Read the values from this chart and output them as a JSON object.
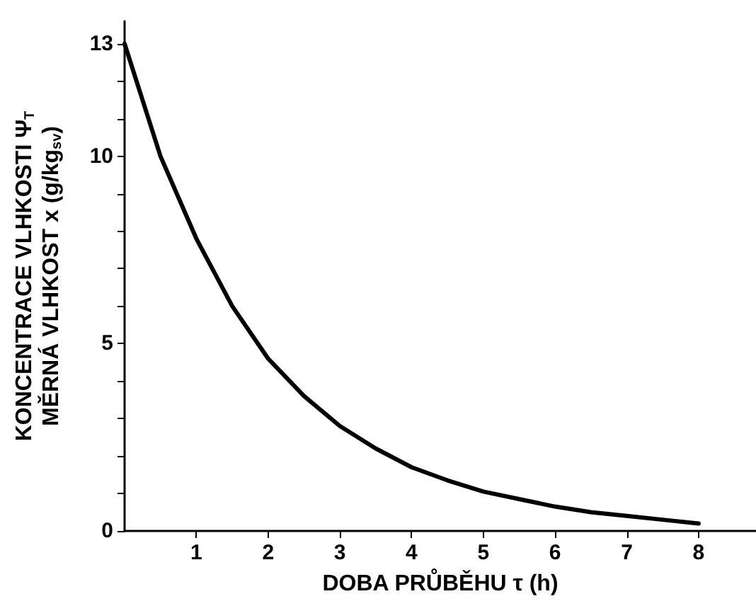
{
  "chart_data": {
    "type": "line",
    "xlabel": "DOBA PRŮBĚHU τ (h)",
    "ylabel": "KONCENTRACE VLHKOSTI Ψ$_{T}$\nMĚRNÁ VLHKOST x (g/kg$_{sv}$)",
    "x": [
      0,
      0.5,
      1,
      1.5,
      2,
      2.5,
      3,
      3.5,
      4,
      4.5,
      5,
      5.5,
      6,
      6.5,
      7,
      7.5,
      8
    ],
    "series": [
      {
        "color": "#000000",
        "values": [
          13,
          10.0,
          7.8,
          6.0,
          4.6,
          3.6,
          2.8,
          2.2,
          1.7,
          1.35,
          1.05,
          0.85,
          0.65,
          0.5,
          0.4,
          0.3,
          0.2
        ]
      }
    ],
    "xlim": [
      0,
      8.8
    ],
    "xticks": [
      1,
      2,
      3,
      4,
      5,
      6,
      7,
      8
    ],
    "ylim": [
      0,
      13.6
    ],
    "yticks": [
      0,
      {
        "value": 1,
        "label": null
      },
      {
        "value": 2,
        "label": null
      },
      {
        "value": 3,
        "label": null
      },
      {
        "value": 4,
        "label": null
      },
      5,
      {
        "value": 6,
        "label": null
      },
      {
        "value": 7,
        "label": null
      },
      {
        "value": 8,
        "label": null
      },
      {
        "value": 9,
        "label": null
      },
      10,
      {
        "value": 11,
        "label": null
      },
      {
        "value": 12,
        "label": null
      },
      13
    ],
    "grid": false,
    "marker": "none",
    "line_style": "solid"
  }
}
